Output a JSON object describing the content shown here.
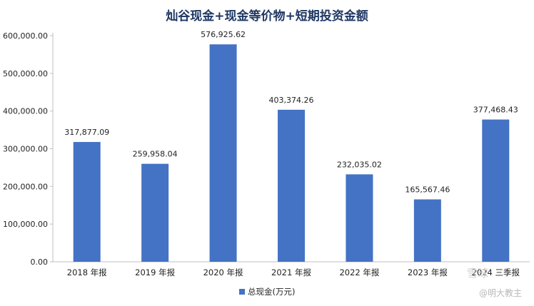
{
  "chart_data": {
    "type": "bar",
    "title": "灿谷现金+现金等价物+短期投资金额",
    "categories": [
      "2018 年报",
      "2019 年报",
      "2020 年报",
      "2021 年报",
      "2022 年报",
      "2023 年报",
      "2024 三季报"
    ],
    "series": [
      {
        "name": "总现金(万元)",
        "values": [
          317877.09,
          259958.04,
          576925.62,
          403374.26,
          232035.02,
          165567.46,
          377468.43
        ],
        "labels": [
          "317,877.09",
          "259,958.04",
          "576,925.62",
          "403,374.26",
          "232,035.02",
          "165,567.46",
          "377,468.43"
        ],
        "color": "#4472c4"
      }
    ],
    "ylim": [
      0,
      600000
    ],
    "yticks": [
      0,
      100000,
      200000,
      300000,
      400000,
      500000,
      600000
    ],
    "ytick_labels": [
      "0.00",
      "100,000.00",
      "200,000.00",
      "300,000.00",
      "400,000.00",
      "500,000.00",
      "600,000.00"
    ],
    "xlabel": "",
    "ylabel": "",
    "grid": false,
    "legend_position": "bottom"
  },
  "watermark": {
    "brand": "雪球",
    "author": "@明大教主"
  }
}
